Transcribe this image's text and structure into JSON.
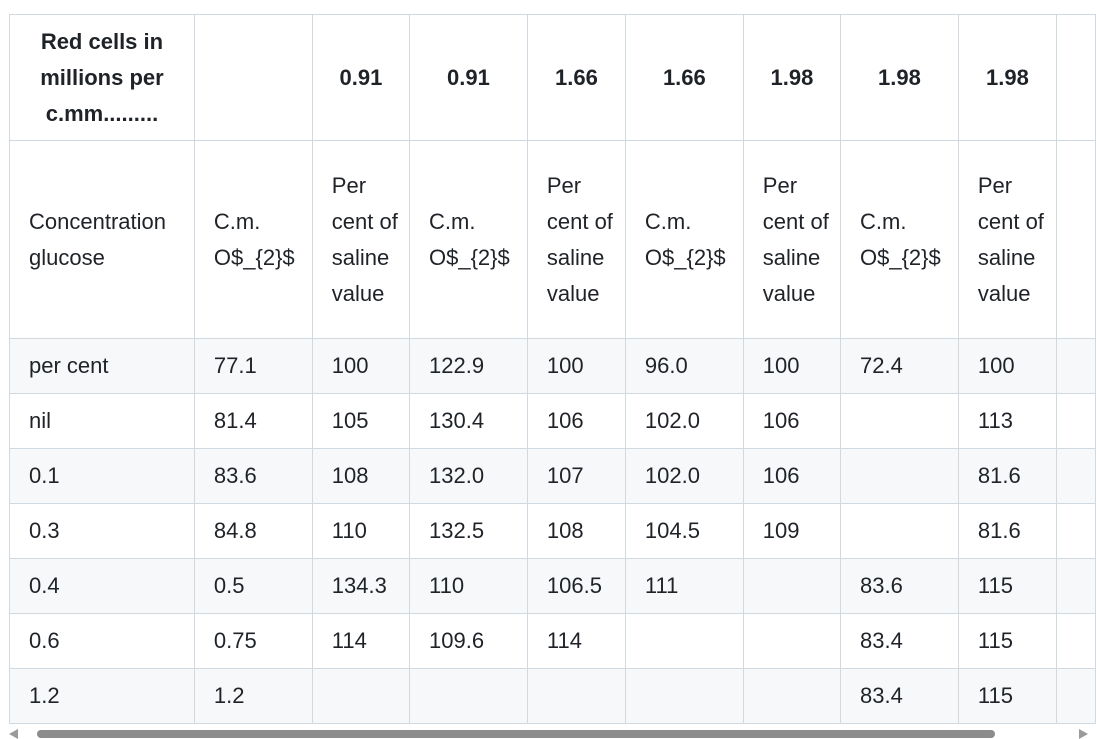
{
  "table": {
    "header": [
      "Red cells in millions per c.mm.........",
      "",
      "0.91",
      "0.91",
      "1.66",
      "1.66",
      "1.98",
      "1.98",
      "1.98"
    ],
    "subheader": [
      "Concentration glucose",
      "C.m. O$_{2}$",
      "Per cent of saline value",
      "C.m. O$_{2}$",
      "Per cent of saline value",
      "C.m. O$_{2}$",
      "Per cent of saline value",
      "C.m. O$_{2}$",
      "Per cent of saline value"
    ],
    "rows": [
      [
        "per cent",
        "77.1",
        "100",
        "122.9",
        "100",
        "96.0",
        "100",
        "72.4",
        "100"
      ],
      [
        "nil",
        "81.4",
        "105",
        "130.4",
        "106",
        "102.0",
        "106",
        "",
        "113"
      ],
      [
        "0.1",
        "83.6",
        "108",
        "132.0",
        "107",
        "102.0",
        "106",
        "",
        "81.6"
      ],
      [
        "0.3",
        "84.8",
        "110",
        "132.5",
        "108",
        "104.5",
        "109",
        "",
        "81.6"
      ],
      [
        "0.4",
        "0.5",
        "134.3",
        "110",
        "106.5",
        "111",
        "",
        "83.6",
        "115"
      ],
      [
        "0.6",
        "0.75",
        "114",
        "109.6",
        "114",
        "",
        "",
        "83.4",
        "115"
      ],
      [
        "1.2",
        "1.2",
        "",
        "",
        "",
        "",
        "",
        "83.4",
        "115"
      ]
    ]
  }
}
